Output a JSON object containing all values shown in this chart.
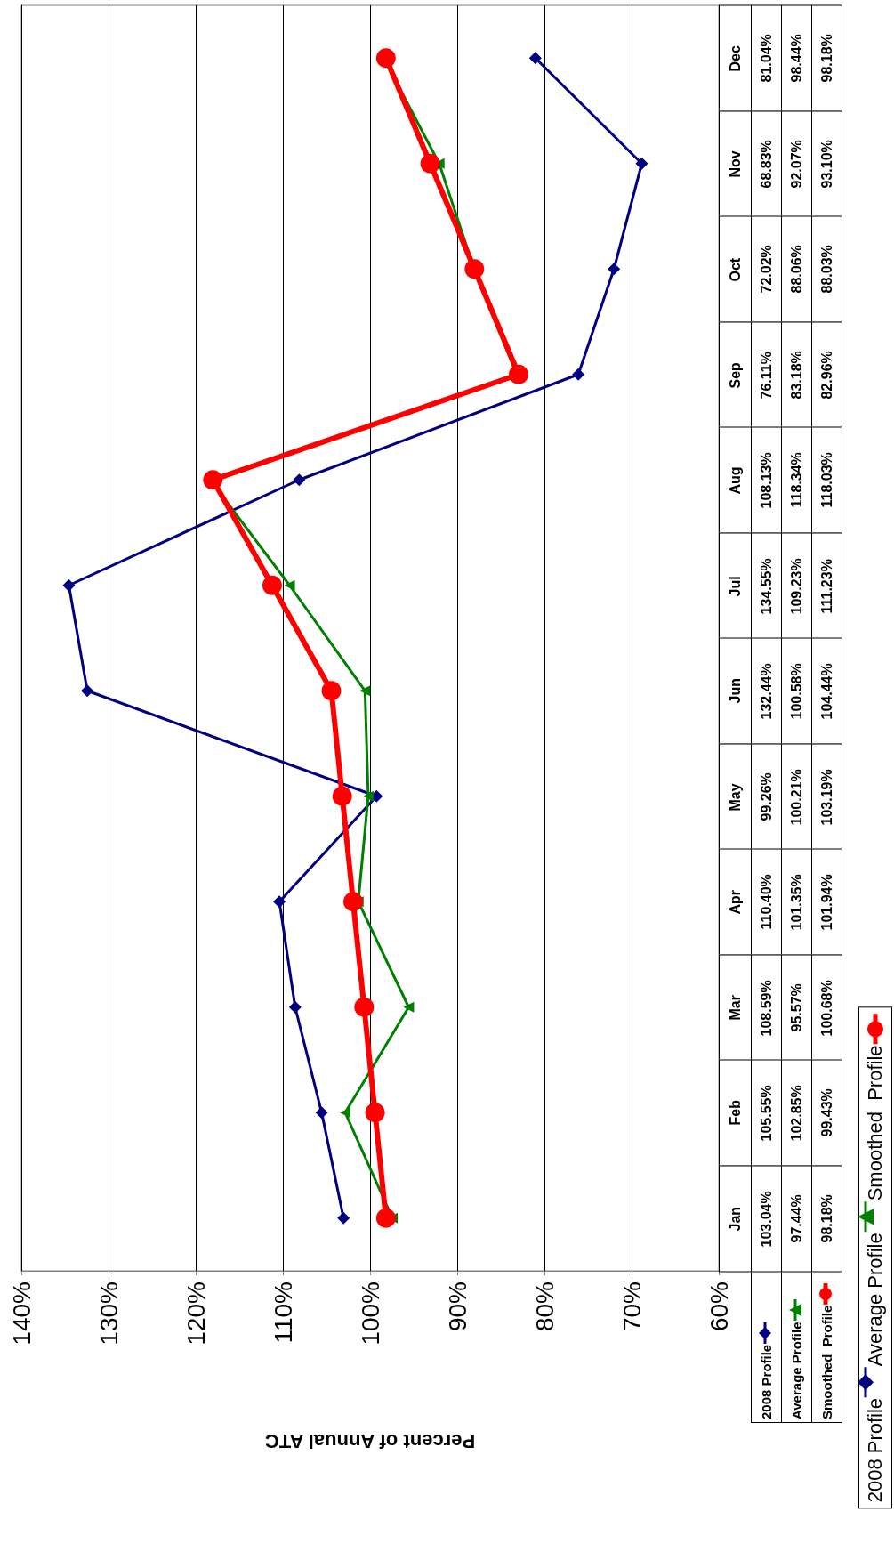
{
  "chart_data": {
    "type": "line",
    "orientation": "horizontal",
    "xlabel": "Percent of Annual ATC",
    "categories": [
      "Dec",
      "Nov",
      "Oct",
      "Sep",
      "Aug",
      "Jul",
      "Jun",
      "May",
      "Apr",
      "Mar",
      "Feb",
      "Jan"
    ],
    "series": [
      {
        "name": "2008 Profile",
        "color": "#000080",
        "marker": "diamond",
        "values": [
          81.04,
          68.83,
          72.02,
          76.11,
          108.13,
          134.55,
          132.44,
          99.26,
          110.4,
          108.59,
          105.55,
          103.04
        ],
        "value_labels": [
          "81.04%",
          "68.83%",
          "72.02%",
          "76.11%",
          "108.13%",
          "134.55%",
          "132.44%",
          "99.26%",
          "110.40%",
          "108.59%",
          "105.55%",
          "103.04%"
        ]
      },
      {
        "name": "Average Profile",
        "color": "#008000",
        "marker": "triangle",
        "values": [
          98.44,
          92.07,
          88.06,
          83.18,
          118.34,
          109.23,
          100.58,
          100.21,
          101.35,
          95.57,
          102.85,
          97.44
        ],
        "value_labels": [
          "98.44%",
          "92.07%",
          "88.06%",
          "83.18%",
          "118.34%",
          "109.23%",
          "100.58%",
          "100.21%",
          "101.35%",
          "95.57%",
          "102.85%",
          "97.44%"
        ]
      },
      {
        "name": "Smoothed  Profile",
        "color": "#ff0000",
        "marker": "circle",
        "values": [
          98.18,
          93.1,
          88.03,
          82.96,
          118.03,
          111.23,
          104.44,
          103.19,
          101.94,
          100.68,
          99.43,
          98.18
        ],
        "value_labels": [
          "98.18%",
          "93.10%",
          "88.03%",
          "82.96%",
          "118.03%",
          "111.23%",
          "104.44%",
          "103.19%",
          "101.94%",
          "100.68%",
          "99.43%",
          "98.18%"
        ]
      }
    ],
    "xlim": [
      140,
      60
    ],
    "xticks": [
      {
        "value": 140,
        "label": "140%"
      },
      {
        "value": 130,
        "label": "130%"
      },
      {
        "value": 120,
        "label": "120%"
      },
      {
        "value": 110,
        "label": "110%"
      },
      {
        "value": 100,
        "label": "100%"
      },
      {
        "value": 90,
        "label": "90%"
      },
      {
        "value": 80,
        "label": "80%"
      },
      {
        "value": 70,
        "label": "70%"
      },
      {
        "value": 60,
        "label": "60%"
      }
    ],
    "grid": "x",
    "legend": "right",
    "line_style": "solid"
  }
}
